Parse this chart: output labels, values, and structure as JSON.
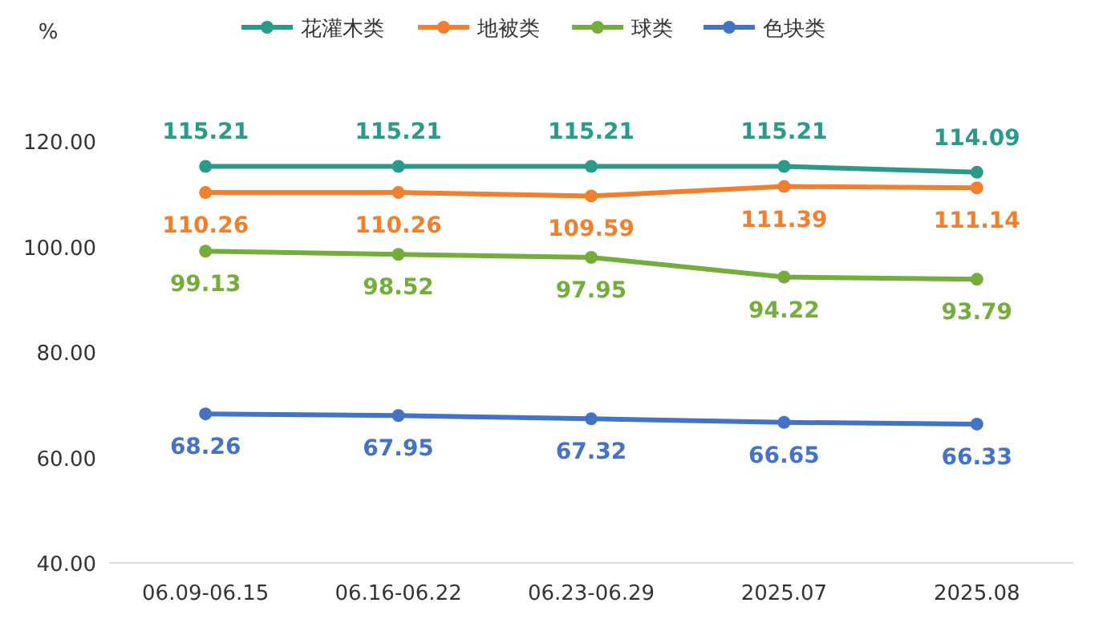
{
  "chart_data": {
    "type": "line",
    "ylabel": "%",
    "categories": [
      "06.09-06.15",
      "06.16-06.22",
      "06.23-06.29",
      "2025.07",
      "2025.08"
    ],
    "series": [
      {
        "name": "花灌木类",
        "color": "#2a9a8a",
        "values": [
          115.21,
          115.21,
          115.21,
          115.21,
          114.09
        ]
      },
      {
        "name": "地被类",
        "color": "#f07f2e",
        "values": [
          110.26,
          110.26,
          109.59,
          111.39,
          111.14
        ]
      },
      {
        "name": "球类",
        "color": "#74ad3c",
        "values": [
          99.13,
          98.52,
          97.95,
          94.22,
          93.79
        ]
      },
      {
        "name": "色块类",
        "color": "#4472c4",
        "values": [
          68.26,
          67.95,
          67.32,
          66.65,
          66.33
        ]
      }
    ],
    "ylim": [
      40,
      120
    ],
    "yticks": [
      {
        "value": 40,
        "label": "40.00"
      },
      {
        "value": 60,
        "label": "60.00"
      },
      {
        "value": 80,
        "label": "80.00"
      },
      {
        "value": 100,
        "label": "100.00"
      },
      {
        "value": 120,
        "label": "120.00"
      }
    ],
    "data_labels": true,
    "legend": "top",
    "marker": "circle",
    "line_style": "solid",
    "grid": false
  }
}
